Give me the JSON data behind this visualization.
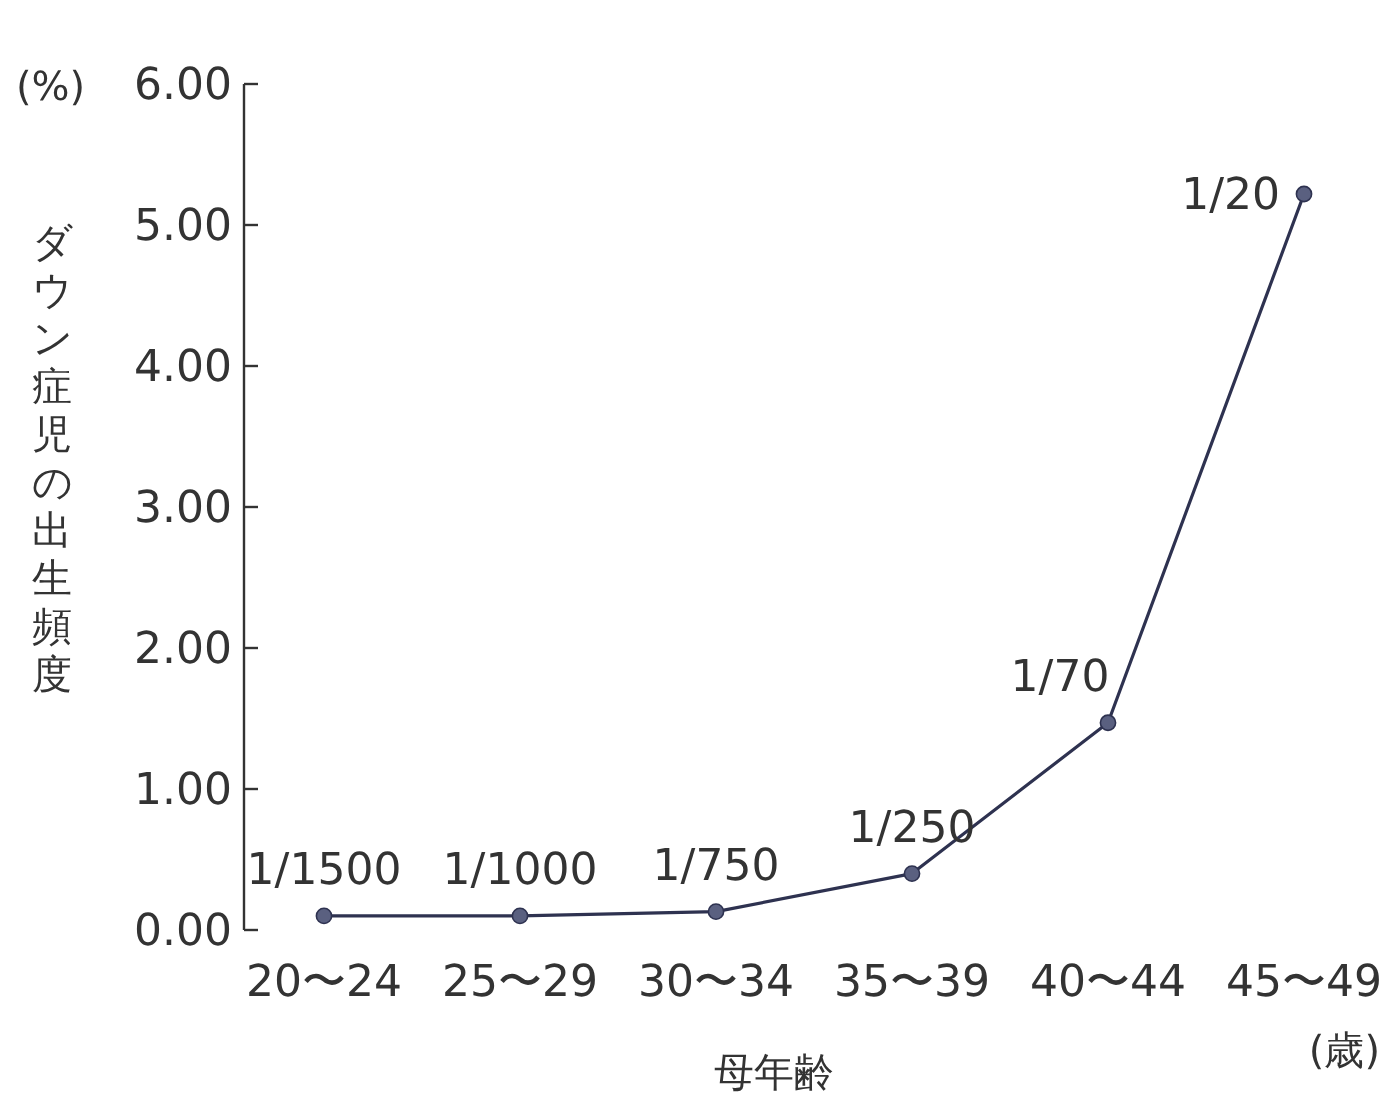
{
  "chart_data": {
    "type": "line",
    "xlabel": "母年齢",
    "ylabel": "ダウン症児の出生頻度",
    "categories": [
      "20〜24",
      "25〜29",
      "30〜34",
      "35〜39",
      "40〜44",
      "45〜49"
    ],
    "series": [
      {
        "color": "#2e3250",
        "values": [
          0.1,
          0.1,
          0.13,
          0.4,
          1.47,
          5.22
        ],
        "value_labels": [
          "1/1500",
          "1/1000",
          "1/750",
          "1/250",
          "1/70",
          "1/20"
        ]
      }
    ],
    "ylim": [
      0,
      6
    ],
    "yticks": [
      {
        "value": 0,
        "label": "0.00"
      },
      {
        "value": 1,
        "label": "1.00"
      },
      {
        "value": 2,
        "label": "2.00"
      },
      {
        "value": 3,
        "label": "3.00"
      },
      {
        "value": 4,
        "label": "4.00"
      },
      {
        "value": 5,
        "label": "5.00"
      },
      {
        "value": 6,
        "label": "6.00"
      }
    ],
    "grid": false,
    "marker": "circle",
    "line_style": "solid",
    "annotations": [
      "(%)",
      "(歳)"
    ]
  }
}
